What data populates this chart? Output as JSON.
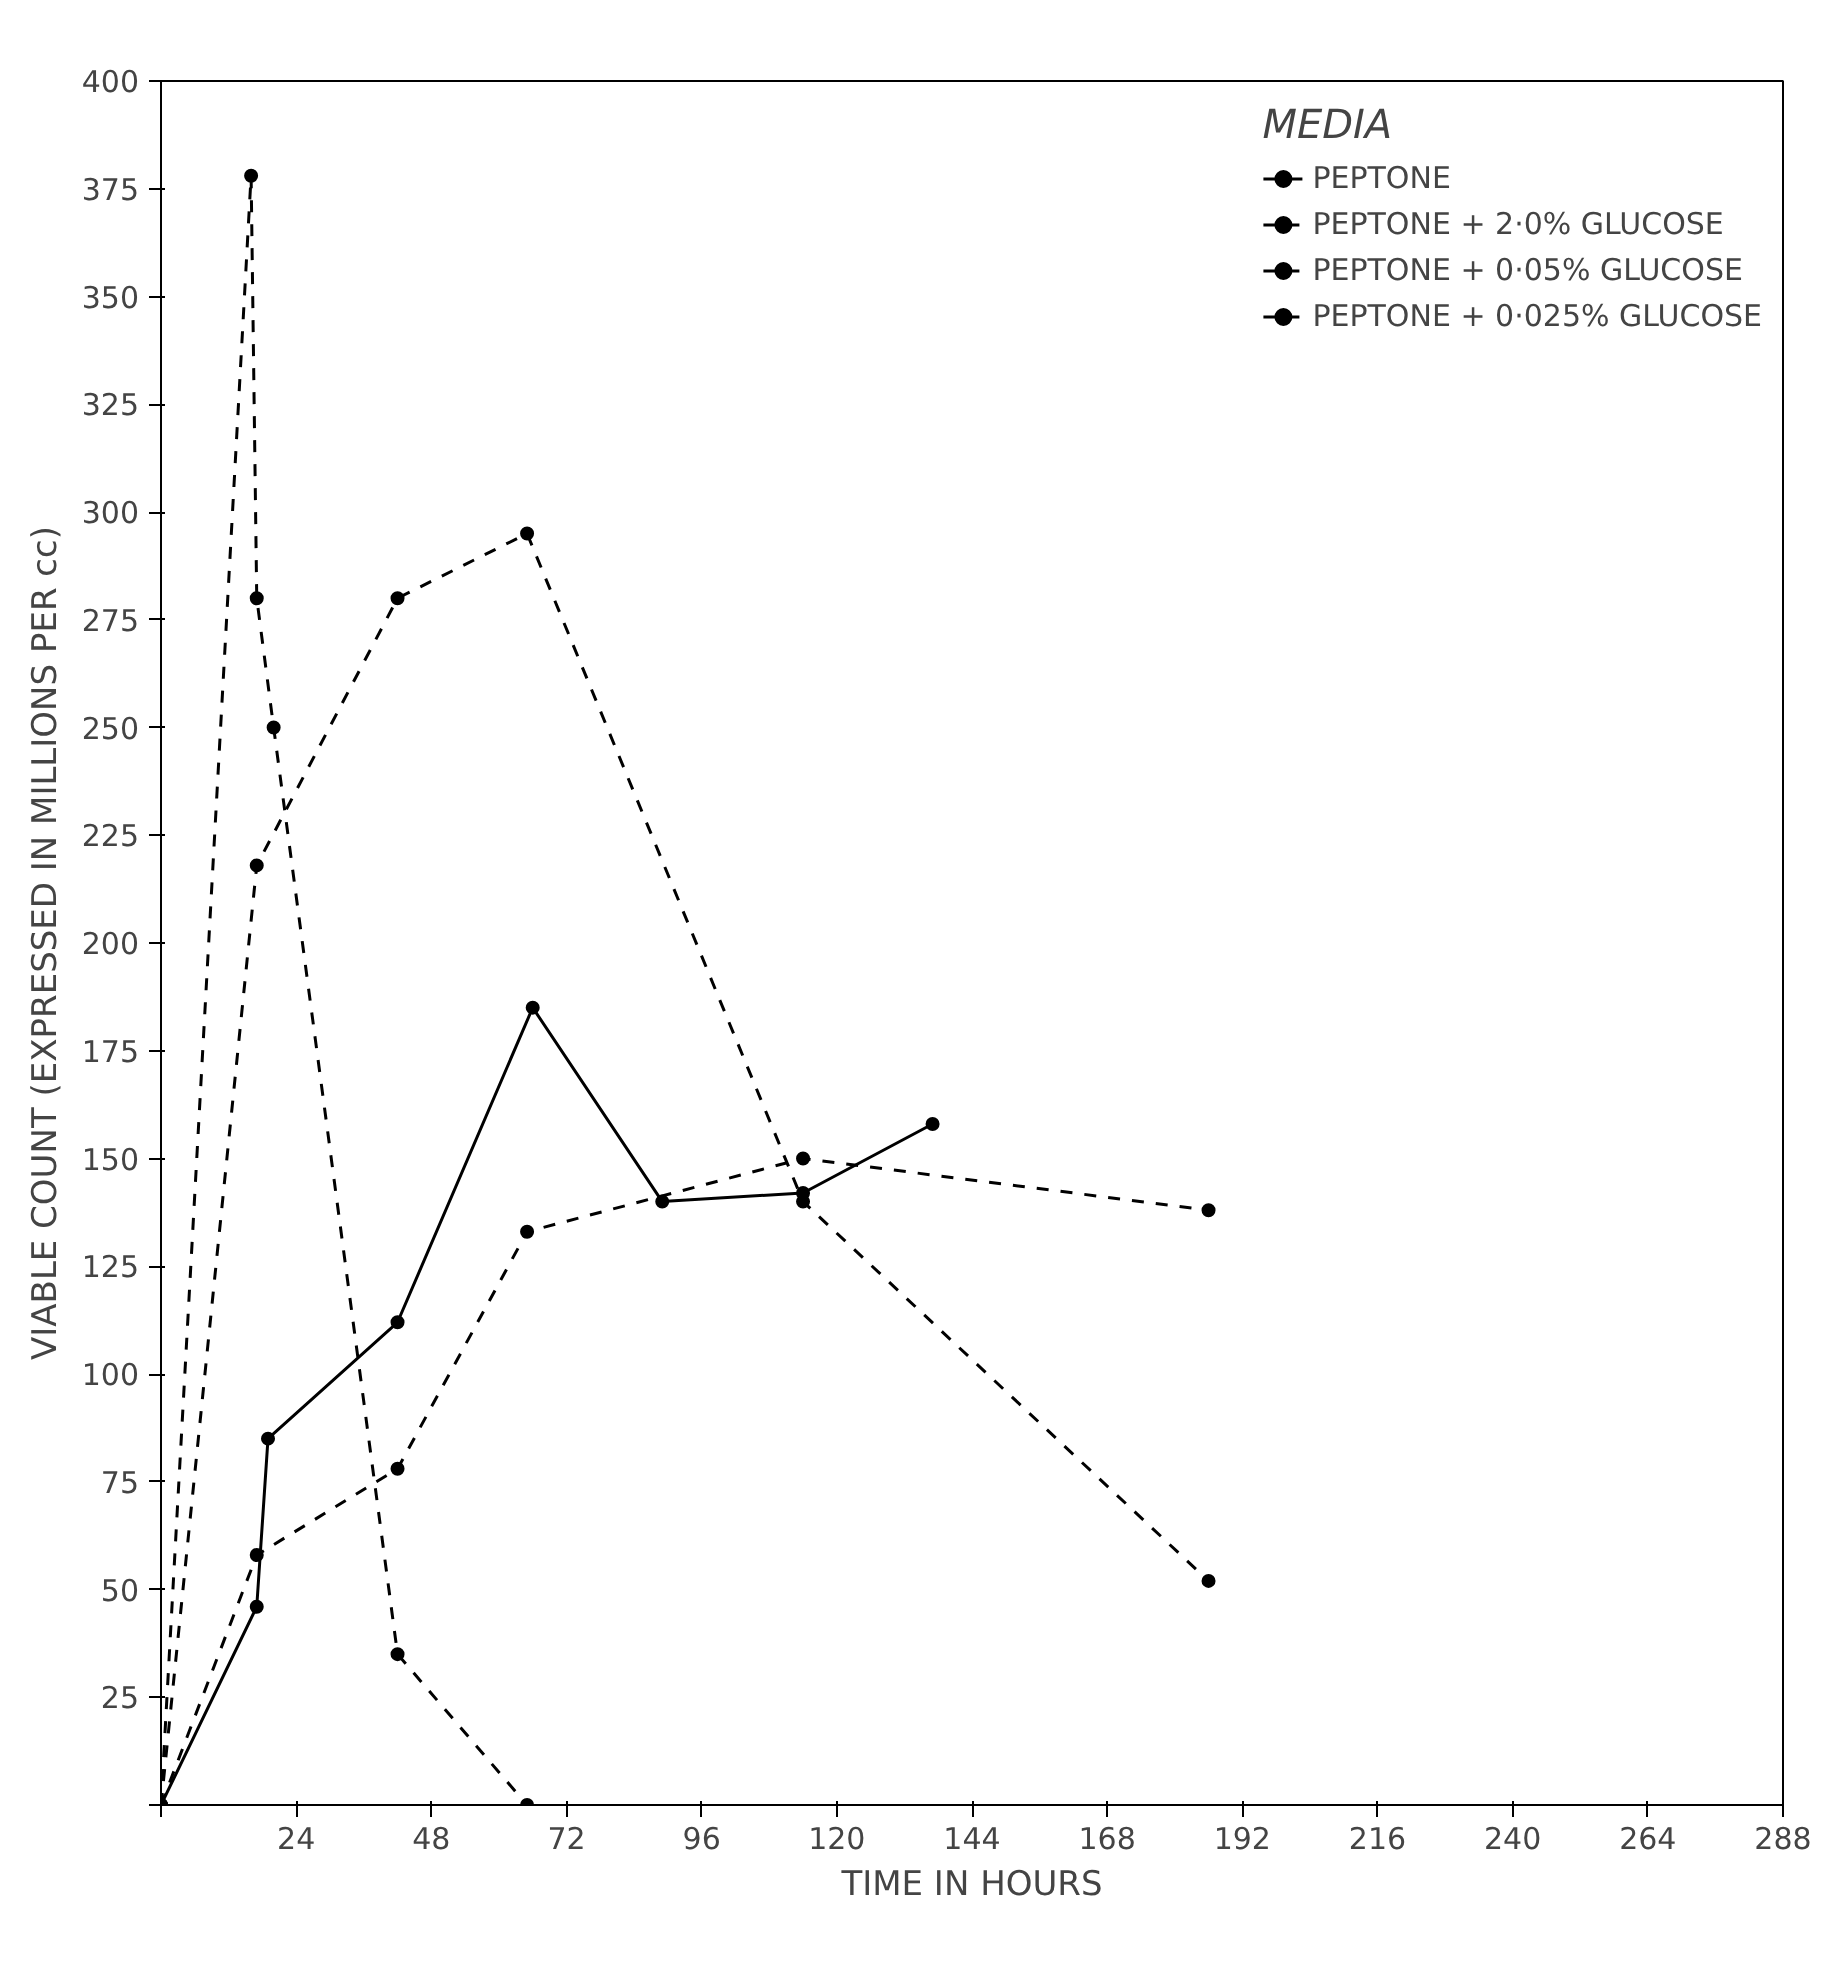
{
  "chart_data": {
    "type": "line",
    "xlabel": "TIME IN HOURS",
    "ylabel": "VIABLE COUNT (EXPRESSED IN MILLIONS PER cc)",
    "legend_title": "MEDIA",
    "legend": "top right",
    "grid": false,
    "marker": "circle",
    "xlim": [
      0,
      288
    ],
    "xticks": [
      {
        "value": 0,
        "label": null
      },
      24,
      48,
      72,
      96,
      120,
      144,
      168,
      192,
      216,
      240,
      264,
      288
    ],
    "ylim": [
      0,
      400
    ],
    "yticks": [
      {
        "value": 0,
        "label": null
      },
      25,
      50,
      75,
      100,
      125,
      150,
      175,
      200,
      225,
      250,
      275,
      300,
      325,
      350,
      375,
      400
    ],
    "series": [
      {
        "name": "PEPTONE",
        "color": "#000000",
        "line_style": "solid",
        "x": [
          0,
          17,
          19,
          42,
          66,
          89,
          114,
          137
        ],
        "values": [
          0,
          46,
          85,
          112,
          185,
          140,
          142,
          158
        ]
      },
      {
        "name": "PEPTONE + 2·0% GLUCOSE",
        "color": "#000000",
        "line_style": "dashed",
        "x": [
          0,
          16,
          17,
          20,
          42,
          65
        ],
        "values": [
          0,
          378,
          280,
          250,
          35,
          0
        ]
      },
      {
        "name": "PEPTONE + 0·05% GLUCOSE",
        "color": "#000000",
        "line_style": "dashed",
        "x": [
          0,
          17,
          42,
          65,
          114,
          186
        ],
        "values": [
          0,
          218,
          280,
          295,
          140,
          52
        ]
      },
      {
        "name": "PEPTONE + 0·025% GLUCOSE",
        "color": "#000000",
        "line_style": "dashed",
        "x": [
          0,
          17,
          42,
          65,
          114,
          186
        ],
        "values": [
          0,
          58,
          78,
          133,
          150,
          138
        ]
      }
    ]
  }
}
